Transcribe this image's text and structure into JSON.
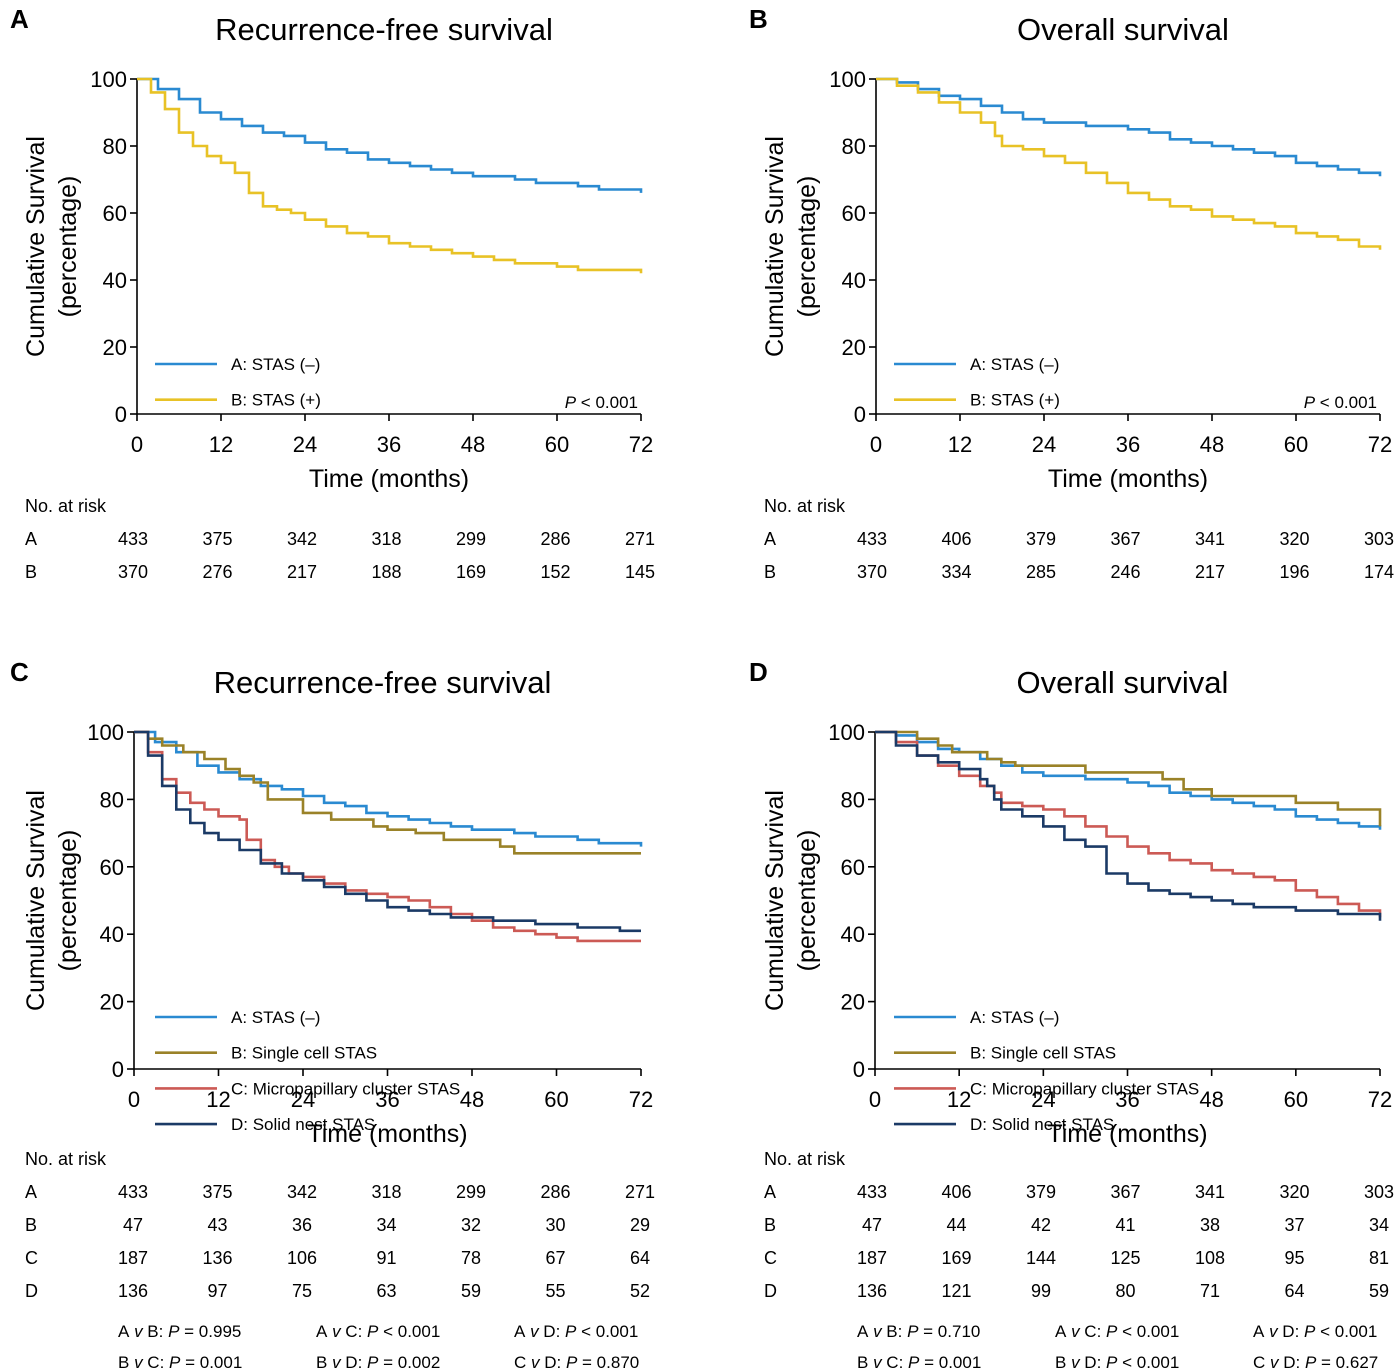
{
  "colors": {
    "A": "#2a8ad1",
    "B": "#e8c226",
    "B4": "#9a8228",
    "C": "#cc5a55",
    "D": "#1b3a66"
  },
  "chart_data": [
    {
      "panel": "A",
      "type": "line",
      "title": "Recurrence-free survival",
      "xlabel": "Time (months)",
      "ylabel": [
        "Cumulative Survival",
        "(percentage)"
      ],
      "xlim": [
        0,
        72
      ],
      "ylim": [
        0,
        100
      ],
      "xticks": [
        "0",
        "12",
        "24",
        "36",
        "48",
        "60",
        "72"
      ],
      "yticks": [
        "0",
        "20",
        "40",
        "60",
        "80",
        "100"
      ],
      "legend": [
        "A: STAS (–)",
        "B: STAS (+)"
      ],
      "pvalue": {
        "label": "P",
        "text": " < 0.001"
      },
      "series": [
        {
          "name": "A: STAS (–)",
          "color_key": "A",
          "x": [
            0,
            3,
            6,
            9,
            12,
            15,
            18,
            21,
            24,
            27,
            30,
            33,
            36,
            39,
            42,
            45,
            48,
            51,
            54,
            57,
            60,
            63,
            66,
            69,
            72
          ],
          "y": [
            100,
            97,
            94,
            90,
            88,
            86,
            84,
            83,
            81,
            79,
            78,
            76,
            75,
            74,
            73,
            72,
            71,
            71,
            70,
            69,
            69,
            68,
            67,
            67,
            66
          ]
        },
        {
          "name": "B: STAS (+)",
          "color_key": "B",
          "x": [
            0,
            2,
            4,
            6,
            8,
            10,
            12,
            14,
            16,
            18,
            20,
            22,
            24,
            27,
            30,
            33,
            36,
            39,
            42,
            45,
            48,
            51,
            54,
            57,
            60,
            63,
            66,
            69,
            72
          ],
          "y": [
            100,
            96,
            91,
            84,
            80,
            77,
            75,
            72,
            66,
            62,
            61,
            60,
            58,
            56,
            54,
            53,
            51,
            50,
            49,
            48,
            47,
            46,
            45,
            45,
            44,
            43,
            43,
            43,
            42
          ]
        }
      ],
      "risk_table": {
        "label": "No. at risk",
        "time_points": [
          "0",
          "12",
          "24",
          "36",
          "48",
          "60",
          "72"
        ],
        "rows": [
          {
            "group": "A",
            "values": [
              "433",
              "375",
              "342",
              "318",
              "299",
              "286",
              "271"
            ]
          },
          {
            "group": "B",
            "values": [
              "370",
              "276",
              "217",
              "188",
              "169",
              "152",
              "145"
            ]
          }
        ]
      }
    },
    {
      "panel": "B",
      "type": "line",
      "title": "Overall survival",
      "xlabel": "Time (months)",
      "ylabel": [
        "Cumulative Survival",
        "(percentage)"
      ],
      "xlim": [
        0,
        72
      ],
      "ylim": [
        0,
        100
      ],
      "xticks": [
        "0",
        "12",
        "24",
        "36",
        "48",
        "60",
        "72"
      ],
      "yticks": [
        "0",
        "20",
        "40",
        "60",
        "80",
        "100"
      ],
      "legend": [
        "A: STAS (–)",
        "B: STAS (+)"
      ],
      "pvalue": {
        "label": "P",
        "text": " < 0.001"
      },
      "series": [
        {
          "name": "A: STAS (–)",
          "color_key": "A",
          "x": [
            0,
            3,
            6,
            9,
            12,
            15,
            18,
            21,
            24,
            27,
            30,
            33,
            36,
            39,
            42,
            45,
            48,
            51,
            54,
            57,
            60,
            63,
            66,
            69,
            72
          ],
          "y": [
            100,
            99,
            97,
            95,
            94,
            92,
            90,
            88,
            87,
            87,
            86,
            86,
            85,
            84,
            82,
            81,
            80,
            79,
            78,
            77,
            75,
            74,
            73,
            72,
            71
          ]
        },
        {
          "name": "B: STAS (+)",
          "color_key": "B",
          "x": [
            0,
            3,
            6,
            9,
            12,
            15,
            17,
            18,
            21,
            24,
            27,
            30,
            33,
            36,
            39,
            42,
            45,
            48,
            51,
            54,
            57,
            60,
            63,
            66,
            69,
            72
          ],
          "y": [
            100,
            98,
            96,
            93,
            90,
            87,
            83,
            80,
            79,
            77,
            75,
            72,
            69,
            66,
            64,
            62,
            61,
            59,
            58,
            57,
            56,
            54,
            53,
            52,
            50,
            49
          ]
        }
      ],
      "risk_table": {
        "label": "No. at risk",
        "time_points": [
          "0",
          "12",
          "24",
          "36",
          "48",
          "60",
          "72"
        ],
        "rows": [
          {
            "group": "A",
            "values": [
              "433",
              "406",
              "379",
              "367",
              "341",
              "320",
              "303"
            ]
          },
          {
            "group": "B",
            "values": [
              "370",
              "334",
              "285",
              "246",
              "217",
              "196",
              "174"
            ]
          }
        ]
      }
    },
    {
      "panel": "C",
      "type": "line",
      "title": "Recurrence-free survival",
      "xlabel": "Time (months)",
      "ylabel": [
        "Cumulative Survival",
        "(percentage)"
      ],
      "xlim": [
        0,
        72
      ],
      "ylim": [
        0,
        100
      ],
      "xticks": [
        "0",
        "12",
        "24",
        "36",
        "48",
        "60",
        "72"
      ],
      "yticks": [
        "0",
        "20",
        "40",
        "60",
        "80",
        "100"
      ],
      "legend": [
        "A: STAS (–)",
        "B: Single cell STAS",
        "C: Micropapillary cluster STAS",
        "D: Solid nest STAS"
      ],
      "series": [
        {
          "name": "A: STAS (–)",
          "color_key": "A",
          "x": [
            0,
            3,
            6,
            9,
            12,
            15,
            18,
            21,
            24,
            27,
            30,
            33,
            36,
            39,
            42,
            45,
            48,
            51,
            54,
            57,
            60,
            63,
            66,
            69,
            72
          ],
          "y": [
            100,
            97,
            94,
            90,
            88,
            86,
            84,
            83,
            81,
            79,
            78,
            76,
            75,
            74,
            73,
            72,
            71,
            71,
            70,
            69,
            69,
            68,
            67,
            67,
            66
          ]
        },
        {
          "name": "B: Single cell STAS",
          "color_key": "B4",
          "x": [
            0,
            2,
            4,
            7,
            10,
            13,
            15,
            17,
            19,
            24,
            28,
            34,
            36,
            40,
            44,
            48,
            52,
            54,
            60,
            72
          ],
          "y": [
            100,
            98,
            96,
            94,
            92,
            89,
            87,
            85,
            80,
            76,
            74,
            72,
            71,
            70,
            68,
            68,
            66,
            64,
            64,
            64
          ]
        },
        {
          "name": "C: Micropapillary cluster STAS",
          "color_key": "C",
          "x": [
            0,
            2,
            4,
            6,
            8,
            10,
            12,
            15,
            16,
            18,
            20,
            22,
            24,
            27,
            30,
            33,
            36,
            39,
            42,
            45,
            48,
            51,
            54,
            57,
            60,
            63,
            66,
            69,
            72
          ],
          "y": [
            100,
            94,
            86,
            82,
            79,
            77,
            75,
            74,
            68,
            62,
            60,
            58,
            57,
            55,
            53,
            52,
            51,
            50,
            48,
            46,
            44,
            42,
            41,
            40,
            39,
            38,
            38,
            38,
            38
          ]
        },
        {
          "name": "D: Solid nest STAS",
          "color_key": "D",
          "x": [
            0,
            2,
            4,
            6,
            8,
            10,
            12,
            15,
            18,
            21,
            24,
            27,
            30,
            33,
            36,
            39,
            42,
            45,
            48,
            51,
            54,
            57,
            60,
            63,
            66,
            69,
            72
          ],
          "y": [
            100,
            93,
            84,
            77,
            73,
            70,
            68,
            65,
            61,
            58,
            56,
            54,
            52,
            50,
            48,
            47,
            46,
            45,
            45,
            44,
            44,
            43,
            43,
            42,
            42,
            41,
            41
          ]
        }
      ],
      "risk_table": {
        "label": "No. at risk",
        "time_points": [
          "0",
          "12",
          "24",
          "36",
          "48",
          "60",
          "72"
        ],
        "rows": [
          {
            "group": "A",
            "values": [
              "433",
              "375",
              "342",
              "318",
              "299",
              "286",
              "271"
            ]
          },
          {
            "group": "B",
            "values": [
              "47",
              "43",
              "36",
              "34",
              "32",
              "30",
              "29"
            ]
          },
          {
            "group": "C",
            "values": [
              "187",
              "136",
              "106",
              "91",
              "78",
              "67",
              "64"
            ]
          },
          {
            "group": "D",
            "values": [
              "136",
              "97",
              "75",
              "63",
              "59",
              "55",
              "52"
            ]
          }
        ]
      },
      "comparisons": [
        {
          "pair": [
            "A",
            "B"
          ],
          "p": "= 0.995"
        },
        {
          "pair": [
            "A",
            "C"
          ],
          "p": "< 0.001"
        },
        {
          "pair": [
            "A",
            "D"
          ],
          "p": "< 0.001"
        },
        {
          "pair": [
            "B",
            "C"
          ],
          "p": "= 0.001"
        },
        {
          "pair": [
            "B",
            "D"
          ],
          "p": "= 0.002"
        },
        {
          "pair": [
            "C",
            "D"
          ],
          "p": "= 0.870"
        }
      ]
    },
    {
      "panel": "D",
      "type": "line",
      "title": "Overall survival",
      "xlabel": "Time (months)",
      "ylabel": [
        "Cumulative Survival",
        "(percentage)"
      ],
      "xlim": [
        0,
        72
      ],
      "ylim": [
        0,
        100
      ],
      "xticks": [
        "0",
        "12",
        "24",
        "36",
        "48",
        "60",
        "72"
      ],
      "yticks": [
        "0",
        "20",
        "40",
        "60",
        "80",
        "100"
      ],
      "legend": [
        "A: STAS (–)",
        "B: Single cell STAS",
        "C: Micropapillary cluster STAS",
        "D: Solid nest STAS"
      ],
      "series": [
        {
          "name": "A: STAS (–)",
          "color_key": "A",
          "x": [
            0,
            3,
            6,
            9,
            12,
            15,
            18,
            21,
            24,
            27,
            30,
            33,
            36,
            39,
            42,
            45,
            48,
            51,
            54,
            57,
            60,
            63,
            66,
            69,
            72
          ],
          "y": [
            100,
            99,
            97,
            95,
            94,
            92,
            90,
            88,
            87,
            87,
            86,
            86,
            85,
            84,
            82,
            81,
            80,
            79,
            78,
            77,
            75,
            74,
            73,
            72,
            71
          ]
        },
        {
          "name": "B: Single cell STAS",
          "color_key": "B4",
          "x": [
            0,
            4,
            6,
            9,
            11,
            13,
            16,
            18,
            20,
            26,
            30,
            36,
            41,
            44,
            48,
            52,
            55,
            59,
            60,
            64,
            66,
            71,
            72
          ],
          "y": [
            100,
            100,
            98,
            96,
            94,
            94,
            92,
            91,
            90,
            90,
            88,
            88,
            86,
            83,
            81,
            81,
            81,
            81,
            79,
            79,
            77,
            77,
            72
          ]
        },
        {
          "name": "C: Micropapillary cluster STAS",
          "color_key": "C",
          "x": [
            0,
            3,
            6,
            9,
            12,
            15,
            17,
            18,
            21,
            24,
            27,
            30,
            33,
            36,
            39,
            42,
            45,
            48,
            51,
            54,
            57,
            60,
            63,
            66,
            69,
            72
          ],
          "y": [
            100,
            97,
            93,
            90,
            87,
            84,
            82,
            79,
            78,
            77,
            75,
            72,
            69,
            66,
            64,
            62,
            61,
            59,
            58,
            57,
            56,
            53,
            51,
            49,
            47,
            45
          ]
        },
        {
          "name": "D: Solid nest STAS",
          "color_key": "D",
          "x": [
            0,
            3,
            6,
            9,
            12,
            15,
            16,
            17,
            18,
            21,
            24,
            27,
            30,
            33,
            36,
            39,
            42,
            45,
            48,
            51,
            54,
            57,
            60,
            63,
            66,
            69,
            72
          ],
          "y": [
            100,
            96,
            93,
            91,
            89,
            86,
            84,
            80,
            77,
            75,
            72,
            68,
            66,
            58,
            55,
            53,
            52,
            51,
            50,
            49,
            48,
            48,
            47,
            47,
            46,
            46,
            44
          ]
        }
      ],
      "risk_table": {
        "label": "No. at risk",
        "time_points": [
          "0",
          "12",
          "24",
          "36",
          "48",
          "60",
          "72"
        ],
        "rows": [
          {
            "group": "A",
            "values": [
              "433",
              "406",
              "379",
              "367",
              "341",
              "320",
              "303"
            ]
          },
          {
            "group": "B",
            "values": [
              "47",
              "44",
              "42",
              "41",
              "38",
              "37",
              "34"
            ]
          },
          {
            "group": "C",
            "values": [
              "187",
              "169",
              "144",
              "125",
              "108",
              "95",
              "81"
            ]
          },
          {
            "group": "D",
            "values": [
              "136",
              "121",
              "99",
              "80",
              "71",
              "64",
              "59"
            ]
          }
        ]
      },
      "comparisons": [
        {
          "pair": [
            "A",
            "B"
          ],
          "p": "= 0.710"
        },
        {
          "pair": [
            "A",
            "C"
          ],
          "p": "< 0.001"
        },
        {
          "pair": [
            "A",
            "D"
          ],
          "p": "< 0.001"
        },
        {
          "pair": [
            "B",
            "C"
          ],
          "p": "= 0.001"
        },
        {
          "pair": [
            "B",
            "D"
          ],
          "p": "< 0.001"
        },
        {
          "pair": [
            "C",
            "D"
          ],
          "p": "= 0.627"
        }
      ]
    }
  ]
}
